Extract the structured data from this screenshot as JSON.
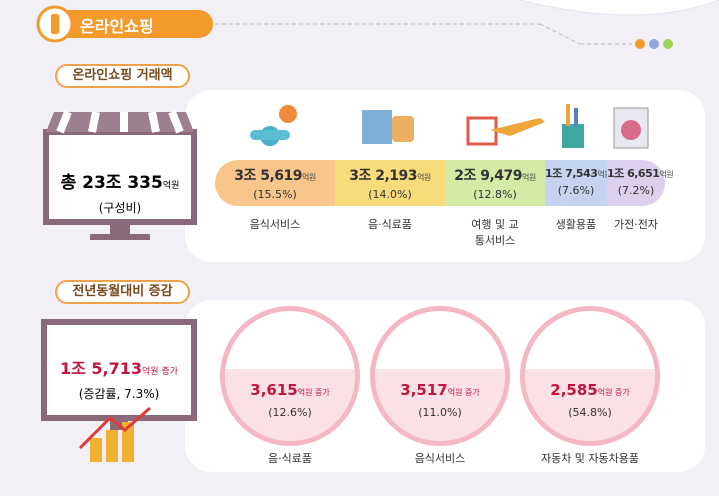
{
  "header": {
    "title": "온라인쇼핑"
  },
  "transaction": {
    "label": "온라인쇼핑 거래액",
    "total": {
      "amount": "총 23조 335",
      "unit": "억원",
      "note": "(구성비)"
    },
    "items": [
      {
        "amount": "3조 5,619",
        "unit": "억원",
        "share": "(15.5%)",
        "name": "음식서비스"
      },
      {
        "amount": "3조 2,193",
        "unit": "억원",
        "share": "(14.0%)",
        "name": "음·식료품"
      },
      {
        "amount": "2조 9,479",
        "unit": "억원",
        "share": "(12.8%)",
        "name": "여행 및 교통서비스"
      },
      {
        "amount": "1조 7,543",
        "unit": "억원",
        "share": "(7.6%)",
        "name": "생활용품"
      },
      {
        "amount": "1조 6,651",
        "unit": "억원",
        "share": "(7.2%)",
        "name": "가전·전자"
      }
    ]
  },
  "change": {
    "label": "전년동월대비 증감",
    "total": {
      "amount": "1조 5,713",
      "unit": "억원 증가",
      "note": "(증감률, 7.3%)"
    },
    "items": [
      {
        "amount": "3,615",
        "unit": "억원 증가",
        "share": "(12.6%)",
        "name": "음·식료품"
      },
      {
        "amount": "3,517",
        "unit": "억원 증가",
        "share": "(11.0%)",
        "name": "음식서비스"
      },
      {
        "amount": "2,585",
        "unit": "억원 증가",
        "share": "(54.8%)",
        "name": "자동차 및 자동차용품"
      }
    ]
  }
}
